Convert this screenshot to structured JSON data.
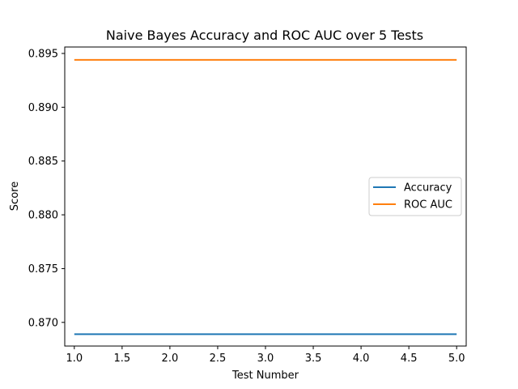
{
  "chart_data": {
    "type": "line",
    "title": "Naive Bayes Accuracy and ROC AUC over 5 Tests",
    "xlabel": "Test Number",
    "ylabel": "Score",
    "x": [
      1,
      2,
      3,
      4,
      5
    ],
    "xlim": [
      0.9,
      5.1
    ],
    "ylim": [
      0.8678,
      0.8956
    ],
    "xticks": [
      "1.0",
      "1.5",
      "2.0",
      "2.5",
      "3.0",
      "3.5",
      "4.0",
      "4.5",
      "5.0"
    ],
    "xtick_values": [
      1.0,
      1.5,
      2.0,
      2.5,
      3.0,
      3.5,
      4.0,
      4.5,
      5.0
    ],
    "yticks": [
      "0.870",
      "0.875",
      "0.880",
      "0.885",
      "0.890",
      "0.895"
    ],
    "ytick_values": [
      0.87,
      0.875,
      0.88,
      0.885,
      0.89,
      0.895
    ],
    "grid": false,
    "legend_position": "center-right",
    "series": [
      {
        "name": "Accuracy",
        "values": [
          0.8689,
          0.8689,
          0.8689,
          0.8689,
          0.8689
        ],
        "color": "#1f77b4"
      },
      {
        "name": "ROC AUC",
        "values": [
          0.8944,
          0.8944,
          0.8944,
          0.8944,
          0.8944
        ],
        "color": "#ff7f0e"
      }
    ]
  }
}
